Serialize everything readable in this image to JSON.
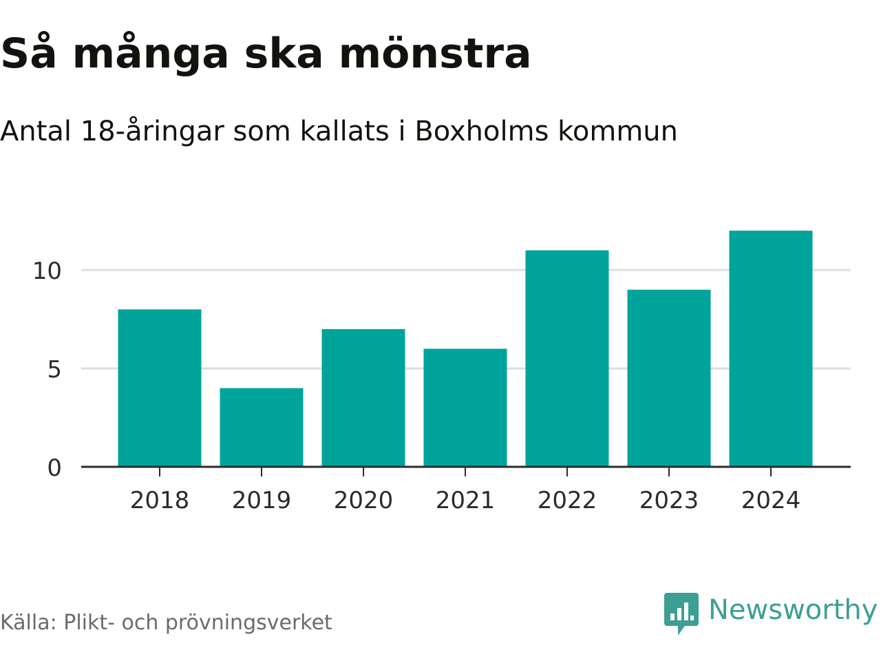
{
  "header": {
    "title": "Så många ska mönstra",
    "subtitle": "Antal 18-åringar som kallats i Boxholms kommun"
  },
  "footer": {
    "source": "Källa: Plikt- och prövningsverket",
    "brand": "Newsworthy",
    "brand_icon": "bar-chart-speech-bubble-icon"
  },
  "colors": {
    "bar": "#00a49a",
    "grid": "#dedede",
    "axis": "#2b2b2b",
    "tick_text": "#2b2b2b",
    "brand": "#3d9f93"
  },
  "chart_data": {
    "type": "bar",
    "title": "Så många ska mönstra",
    "subtitle": "Antal 18-åringar som kallats i Boxholms kommun",
    "categories": [
      "2018",
      "2019",
      "2020",
      "2021",
      "2022",
      "2023",
      "2024"
    ],
    "values": [
      8,
      4,
      7,
      6,
      11,
      9,
      12
    ],
    "ylim": [
      0,
      12
    ],
    "yticks": [
      0,
      5,
      10
    ],
    "xlabel": "",
    "ylabel": "",
    "grid": true
  }
}
